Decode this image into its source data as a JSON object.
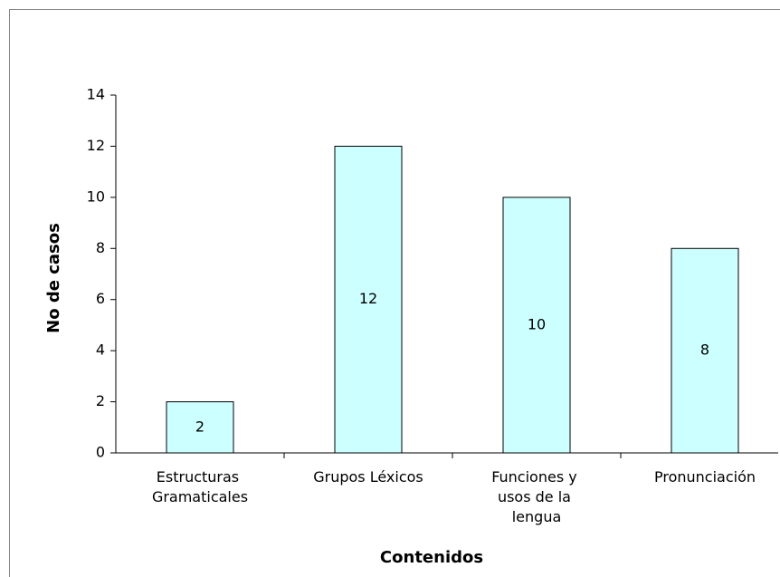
{
  "chart_data": {
    "type": "bar",
    "categories": [
      "Estructuras Gramaticales",
      "Grupos Léxicos",
      "Funciones y usos de la lengua",
      "Pronunciación"
    ],
    "values": [
      2,
      12,
      10,
      8
    ],
    "color": "#ccffff",
    "ylim": [
      0,
      14
    ],
    "yticks": [
      0,
      2,
      4,
      6,
      8,
      10,
      12,
      14
    ],
    "ylabel": "No de casos",
    "xlabel": "Contenidos"
  }
}
